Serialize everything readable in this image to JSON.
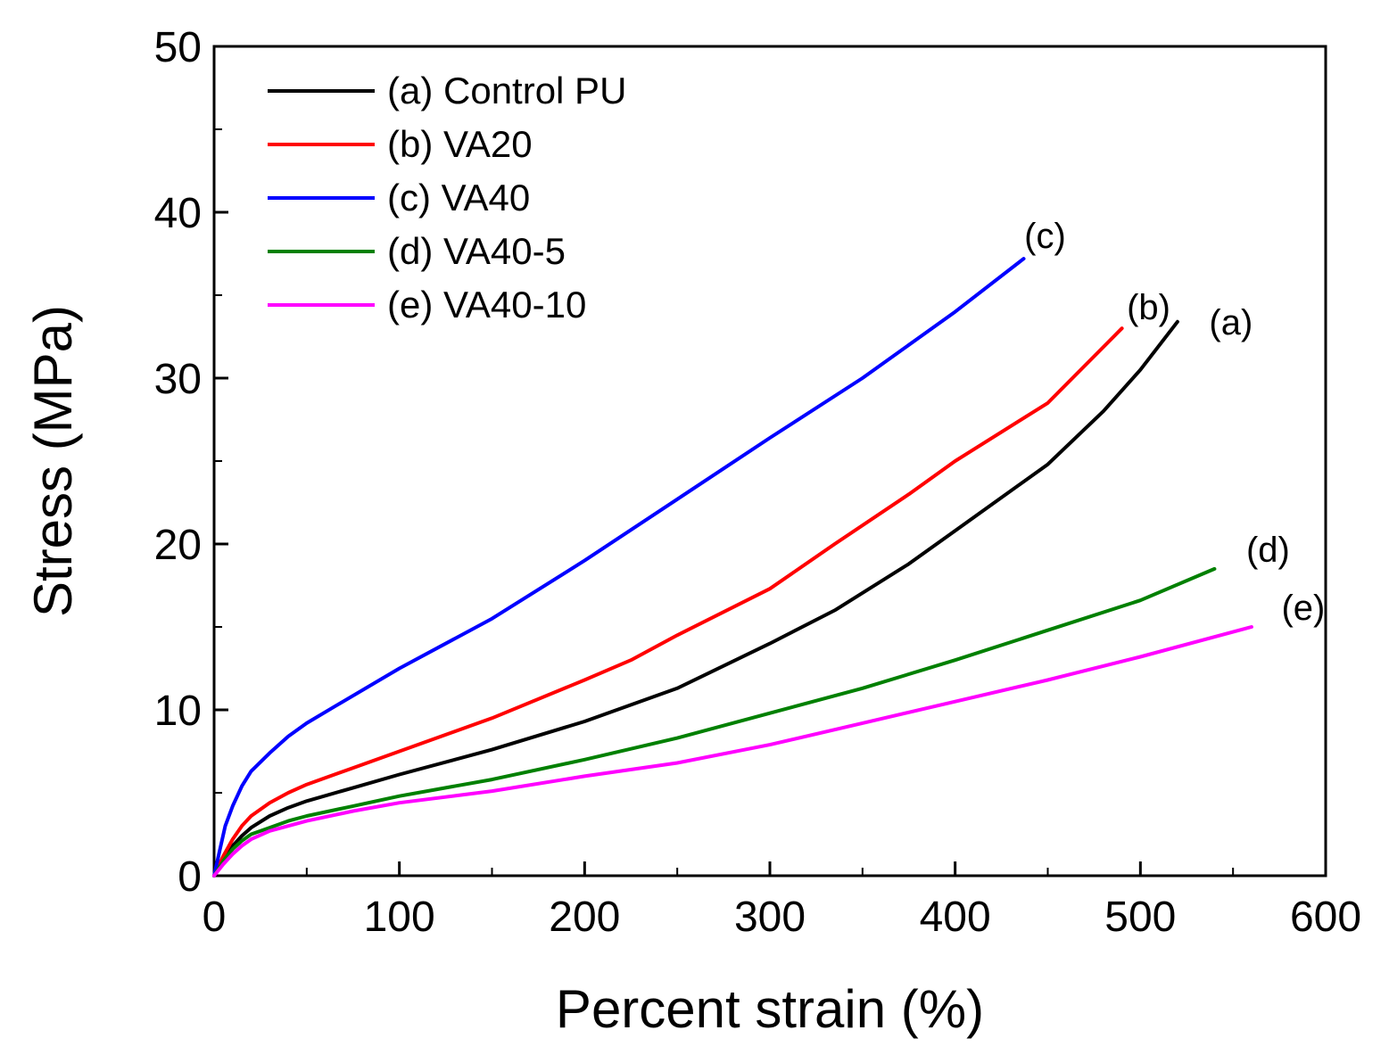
{
  "chart_data": {
    "type": "line",
    "title": "",
    "xlabel": "Percent strain (%)",
    "ylabel": "Stress (MPa)",
    "xlim": [
      0,
      600
    ],
    "ylim": [
      0,
      50
    ],
    "xticks": [
      0,
      100,
      200,
      300,
      400,
      500,
      600
    ],
    "yticks": [
      0,
      10,
      20,
      30,
      40,
      50
    ],
    "grid": false,
    "legend_position": "top-left",
    "series": [
      {
        "name": "(a) Control PU",
        "end_label": "(a)",
        "color": "#000000",
        "points": [
          [
            0,
            0
          ],
          [
            5,
            1.0
          ],
          [
            10,
            1.8
          ],
          [
            15,
            2.4
          ],
          [
            20,
            2.9
          ],
          [
            30,
            3.6
          ],
          [
            40,
            4.1
          ],
          [
            50,
            4.5
          ],
          [
            75,
            5.3
          ],
          [
            100,
            6.1
          ],
          [
            150,
            7.6
          ],
          [
            200,
            9.3
          ],
          [
            250,
            11.3
          ],
          [
            300,
            14.0
          ],
          [
            335,
            16.0
          ],
          [
            375,
            18.8
          ],
          [
            400,
            20.8
          ],
          [
            450,
            24.8
          ],
          [
            480,
            28.0
          ],
          [
            500,
            30.5
          ],
          [
            520,
            33.4
          ]
        ]
      },
      {
        "name": "(b) VA20",
        "end_label": "(b)",
        "color": "#ff0000",
        "points": [
          [
            0,
            0
          ],
          [
            5,
            1.2
          ],
          [
            10,
            2.2
          ],
          [
            15,
            3.0
          ],
          [
            20,
            3.6
          ],
          [
            30,
            4.4
          ],
          [
            40,
            5.0
          ],
          [
            50,
            5.5
          ],
          [
            75,
            6.5
          ],
          [
            100,
            7.5
          ],
          [
            150,
            9.5
          ],
          [
            200,
            11.8
          ],
          [
            225,
            13.0
          ],
          [
            250,
            14.5
          ],
          [
            300,
            17.3
          ],
          [
            335,
            20.0
          ],
          [
            375,
            23.0
          ],
          [
            400,
            25.0
          ],
          [
            450,
            28.5
          ],
          [
            490,
            33.0
          ]
        ]
      },
      {
        "name": "(c) VA40",
        "end_label": "(c)",
        "color": "#0000ff",
        "points": [
          [
            0,
            0
          ],
          [
            3,
            1.5
          ],
          [
            6,
            3.0
          ],
          [
            10,
            4.2
          ],
          [
            15,
            5.4
          ],
          [
            20,
            6.3
          ],
          [
            30,
            7.4
          ],
          [
            40,
            8.4
          ],
          [
            50,
            9.2
          ],
          [
            65,
            10.2
          ],
          [
            100,
            12.5
          ],
          [
            150,
            15.5
          ],
          [
            200,
            19.0
          ],
          [
            250,
            22.7
          ],
          [
            300,
            26.4
          ],
          [
            350,
            30.0
          ],
          [
            400,
            34.0
          ],
          [
            437,
            37.2
          ]
        ]
      },
      {
        "name": "(d) VA40-5",
        "end_label": "(d)",
        "color": "#008000",
        "points": [
          [
            0,
            0
          ],
          [
            5,
            0.9
          ],
          [
            10,
            1.6
          ],
          [
            15,
            2.1
          ],
          [
            20,
            2.5
          ],
          [
            30,
            2.9
          ],
          [
            40,
            3.3
          ],
          [
            50,
            3.6
          ],
          [
            75,
            4.2
          ],
          [
            100,
            4.8
          ],
          [
            150,
            5.8
          ],
          [
            200,
            7.0
          ],
          [
            250,
            8.3
          ],
          [
            300,
            9.8
          ],
          [
            350,
            11.3
          ],
          [
            400,
            13.0
          ],
          [
            450,
            14.8
          ],
          [
            500,
            16.6
          ],
          [
            540,
            18.5
          ]
        ]
      },
      {
        "name": "(e) VA40-10",
        "end_label": "(e)",
        "color": "#ff00ff",
        "points": [
          [
            0,
            0
          ],
          [
            5,
            0.7
          ],
          [
            10,
            1.3
          ],
          [
            15,
            1.8
          ],
          [
            20,
            2.2
          ],
          [
            30,
            2.7
          ],
          [
            40,
            3.0
          ],
          [
            50,
            3.3
          ],
          [
            75,
            3.9
          ],
          [
            100,
            4.4
          ],
          [
            150,
            5.1
          ],
          [
            200,
            6.0
          ],
          [
            250,
            6.8
          ],
          [
            300,
            7.9
          ],
          [
            350,
            9.2
          ],
          [
            400,
            10.5
          ],
          [
            450,
            11.8
          ],
          [
            500,
            13.2
          ],
          [
            560,
            15.0
          ]
        ]
      }
    ]
  }
}
